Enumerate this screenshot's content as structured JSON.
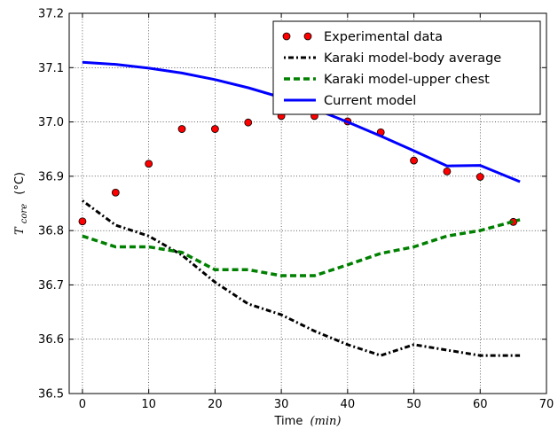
{
  "chart_data": {
    "type": "line",
    "xlabel": "Time",
    "xlabel_unit": "(min)",
    "ylabel": "T",
    "ylabel_subscript": "core",
    "ylabel_unit": "(°C)",
    "xlim": [
      -2,
      70
    ],
    "ylim": [
      36.5,
      37.2
    ],
    "xticks": [
      0,
      10,
      20,
      30,
      40,
      50,
      60,
      70
    ],
    "yticks": [
      36.5,
      36.6,
      36.7,
      36.8,
      36.9,
      37.0,
      37.1,
      37.2
    ],
    "ytick_labels": [
      "36.5",
      "36.6",
      "36.7",
      "36.8",
      "36.9",
      "37.0",
      "37.1",
      "37.2"
    ],
    "grid": true,
    "legend_position": "top-right",
    "series": [
      {
        "name": "Experimental data",
        "kind": "scatter",
        "color": "#ff0000",
        "x": [
          0,
          5,
          10,
          15,
          20,
          25,
          30,
          35,
          40,
          45,
          50,
          55,
          60,
          65
        ],
        "y": [
          36.817,
          36.87,
          36.923,
          36.987,
          36.987,
          36.999,
          37.011,
          37.011,
          37.001,
          36.981,
          36.929,
          36.909,
          36.899,
          36.816
        ]
      },
      {
        "name": "Karaki model-body average",
        "kind": "line",
        "style": "dashdot",
        "color": "#000000",
        "x": [
          0,
          5,
          10,
          15,
          20,
          25,
          30,
          35,
          40,
          45,
          50,
          55,
          60,
          66
        ],
        "y": [
          36.855,
          36.81,
          36.79,
          36.755,
          36.705,
          36.665,
          36.645,
          36.615,
          36.59,
          36.57,
          36.59,
          36.58,
          36.57,
          36.57
        ]
      },
      {
        "name": "Karaki model-upper chest",
        "kind": "line",
        "style": "dashed",
        "color": "#008000",
        "x": [
          0,
          5,
          10,
          15,
          20,
          25,
          30,
          35,
          40,
          45,
          50,
          55,
          60,
          66
        ],
        "y": [
          36.79,
          36.77,
          36.77,
          36.76,
          36.728,
          36.728,
          36.717,
          36.717,
          36.737,
          36.758,
          36.77,
          36.79,
          36.8,
          36.82
        ]
      },
      {
        "name": "Current model",
        "kind": "line",
        "style": "solid",
        "color": "#0000ff",
        "x": [
          0,
          5,
          10,
          15,
          20,
          25,
          30,
          35,
          40,
          45,
          50,
          55,
          60,
          66
        ],
        "y": [
          37.11,
          37.106,
          37.099,
          37.09,
          37.078,
          37.063,
          37.045,
          37.024,
          37.0,
          36.974,
          36.947,
          36.919,
          36.92,
          36.89
        ]
      }
    ]
  }
}
